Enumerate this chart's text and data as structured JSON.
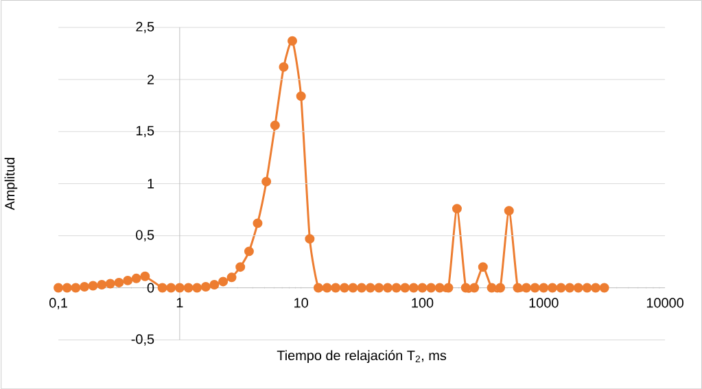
{
  "chart_data": {
    "type": "line",
    "xlabel": "Tiempo de relajación T$_{2}$, ms",
    "ylabel": "Amplitud",
    "x": [
      0.1,
      0.118,
      0.139,
      0.164,
      0.193,
      0.228,
      0.268,
      0.316,
      0.373,
      0.439,
      0.518,
      0.611,
      0.72,
      0.848,
      1,
      1.18,
      1.39,
      1.64,
      1.93,
      2.28,
      2.68,
      3.16,
      3.73,
      4.39,
      5.18,
      6.11,
      7.2,
      8.48,
      10,
      11.8,
      13.9,
      16.4,
      19.3,
      22.8,
      26.8,
      31.6,
      37.3,
      43.9,
      51.8,
      61.1,
      72,
      84.8,
      100,
      118,
      139,
      164,
      193,
      228,
      268,
      316,
      373,
      439,
      518,
      611,
      720,
      848,
      1000,
      1180,
      1390,
      1640,
      1930,
      2280,
      2680,
      3160
    ],
    "series": [
      {
        "color": "#ed7d31",
        "values": [
          0,
          0,
          0,
          0.01,
          0.02,
          0.03,
          0.04,
          0.05,
          0.07,
          0.09,
          0.11,
          null,
          0,
          0,
          0,
          0,
          0,
          0.01,
          0.03,
          0.06,
          0.1,
          0.2,
          0.35,
          0.62,
          1.02,
          1.56,
          2.12,
          2.37,
          1.84,
          0.47,
          0,
          0,
          0,
          0,
          0,
          0,
          0,
          0,
          0,
          0,
          0,
          0,
          0,
          0,
          0,
          0,
          0.76,
          0,
          0,
          0.2,
          0,
          0,
          0.74,
          0,
          0,
          0,
          0,
          0,
          0,
          0,
          0,
          0,
          0,
          0
        ]
      }
    ],
    "log": "x",
    "grid": "y",
    "marker": "circle",
    "xlim": [
      0.1,
      10000
    ],
    "ylim": [
      -0.5,
      2.5
    ],
    "xticks": [
      {
        "value": 0.1,
        "label": "0,1"
      },
      1,
      10,
      100,
      1000,
      10000
    ],
    "yticks": [
      {
        "value": -0.5,
        "label": "-0,5"
      },
      0,
      {
        "value": 0.5,
        "label": "0,5"
      },
      1,
      {
        "value": 1.5,
        "label": "1,5"
      },
      2,
      {
        "value": 2.5,
        "label": "2,5"
      }
    ]
  }
}
